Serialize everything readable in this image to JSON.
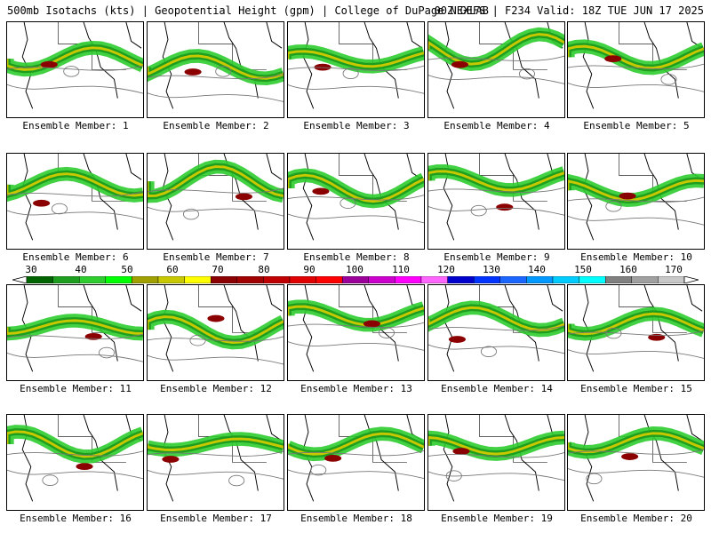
{
  "header": {
    "field": "500mb Isotachs (kts) | Geopotential Height (gpm) | College of DuPage NEXLAB",
    "run": "00Z GEFS | F234 Valid: 18Z TUE JUN 17 2025"
  },
  "colorbar": {
    "labels": [
      "30",
      "40",
      "50",
      "60",
      "70",
      "80",
      "90",
      "100",
      "110",
      "120",
      "130",
      "140",
      "150",
      "160",
      "170"
    ],
    "colors": [
      "#006400",
      "#1e9e1e",
      "#2ecc2e",
      "#00ff00",
      "#a0a000",
      "#c8c800",
      "#ffff00",
      "#8b0000",
      "#a00000",
      "#c00000",
      "#e00000",
      "#ff0000",
      "#9b009b",
      "#cc00cc",
      "#ff00ff",
      "#ff66ff",
      "#0000cc",
      "#0033ff",
      "#1a66ff",
      "#0099ff",
      "#00ccff",
      "#00ffff",
      "#808080",
      "#a0a0a0",
      "#c8c8c8"
    ]
  },
  "members": [
    {
      "label": "Ensemble Member: 1"
    },
    {
      "label": "Ensemble Member: 2"
    },
    {
      "label": "Ensemble Member: 3"
    },
    {
      "label": "Ensemble Member: 4"
    },
    {
      "label": "Ensemble Member: 5"
    },
    {
      "label": "Ensemble Member: 6"
    },
    {
      "label": "Ensemble Member: 7"
    },
    {
      "label": "Ensemble Member: 8"
    },
    {
      "label": "Ensemble Member: 9"
    },
    {
      "label": "Ensemble Member: 10"
    },
    {
      "label": "Ensemble Member: 11"
    },
    {
      "label": "Ensemble Member: 12"
    },
    {
      "label": "Ensemble Member: 13"
    },
    {
      "label": "Ensemble Member: 14"
    },
    {
      "label": "Ensemble Member: 15"
    },
    {
      "label": "Ensemble Member: 16"
    },
    {
      "label": "Ensemble Member: 17"
    },
    {
      "label": "Ensemble Member: 18"
    },
    {
      "label": "Ensemble Member: 19"
    },
    {
      "label": "Ensemble Member: 20"
    }
  ]
}
